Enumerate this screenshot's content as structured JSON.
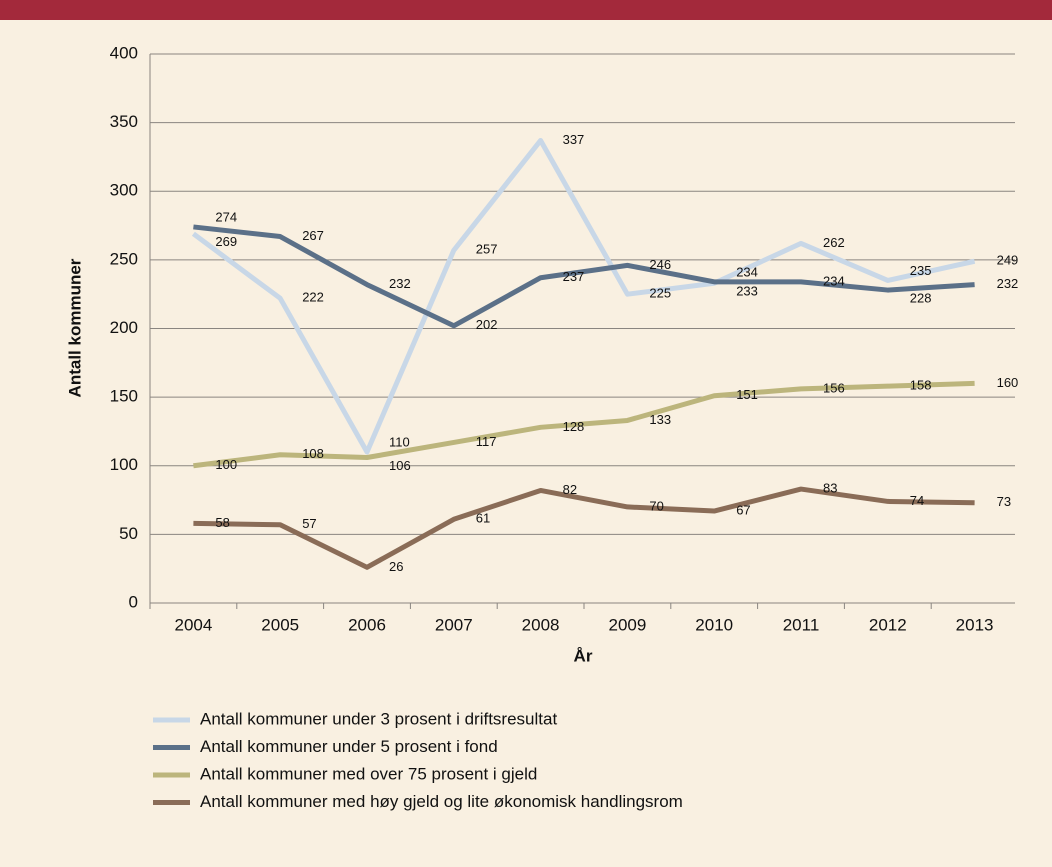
{
  "chart_data": {
    "type": "line",
    "x_label": "År",
    "y_label": "Antall kommuner",
    "categories": [
      "2004",
      "2005",
      "2006",
      "2007",
      "2008",
      "2009",
      "2010",
      "2011",
      "2012",
      "2013"
    ],
    "series": [
      {
        "name": "Antall kommuner under 3 prosent i driftsresultat",
        "color": "#c8d7e7",
        "values": [
          269,
          222,
          110,
          257,
          337,
          225,
          233,
          262,
          235,
          249
        ]
      },
      {
        "name": "Antall kommuner under 5 prosent i fond",
        "color": "#5b7088",
        "values": [
          274,
          267,
          232,
          202,
          237,
          246,
          234,
          234,
          228,
          232
        ]
      },
      {
        "name": "Antall kommuner med over 75 prosent i gjeld",
        "color": "#bcb57c",
        "values": [
          100,
          108,
          106,
          117,
          128,
          133,
          151,
          156,
          158,
          160
        ]
      },
      {
        "name": "Antall  kommuner med høy gjeld og lite økonomisk handlingsrom",
        "color": "#8a6c57",
        "values": [
          58,
          57,
          26,
          61,
          82,
          70,
          67,
          83,
          74,
          73
        ]
      }
    ],
    "ylim": [
      0,
      400
    ],
    "yticks": [
      0,
      50,
      100,
      150,
      200,
      250,
      300,
      350,
      400
    ],
    "grid": true
  }
}
